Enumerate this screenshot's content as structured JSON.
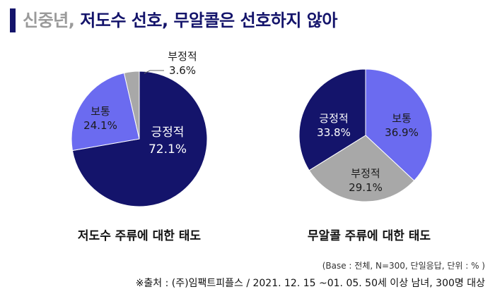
{
  "header": {
    "title_prefix": "신중년,",
    "title_main": " 저도수 선호, 무알콜은 선호하지 않아"
  },
  "chart_data": [
    {
      "type": "pie",
      "title": "저도수 주류에 대한 태도",
      "slices": [
        {
          "label": "긍정적",
          "value": 72.1,
          "value_text": "72.1%",
          "color": "#14146b"
        },
        {
          "label": "보통",
          "value": 24.1,
          "value_text": "24.1%",
          "color": "#6b6bf0"
        },
        {
          "label": "부정적",
          "value": 3.6,
          "value_text": "3.6%",
          "color": "#a8a8a8"
        }
      ]
    },
    {
      "type": "pie",
      "title": "무알콜 주류에 대한 태도",
      "slices": [
        {
          "label": "보통",
          "value": 36.9,
          "value_text": "36.9%",
          "color": "#6b6bf0"
        },
        {
          "label": "부정적",
          "value": 29.1,
          "value_text": "29.1%",
          "color": "#a8a8a8"
        },
        {
          "label": "긍정적",
          "value": 33.8,
          "value_text": "33.8%",
          "color": "#14146b"
        }
      ]
    }
  ],
  "footer": {
    "base_note": "(Base : 전체, N=300, 단일응답, 단위 : % )",
    "source": "※출처 : (주)임팩트피플스 / 2021. 12. 15 ~01. 05. 50세 이상 남녀, 300명 대상"
  }
}
